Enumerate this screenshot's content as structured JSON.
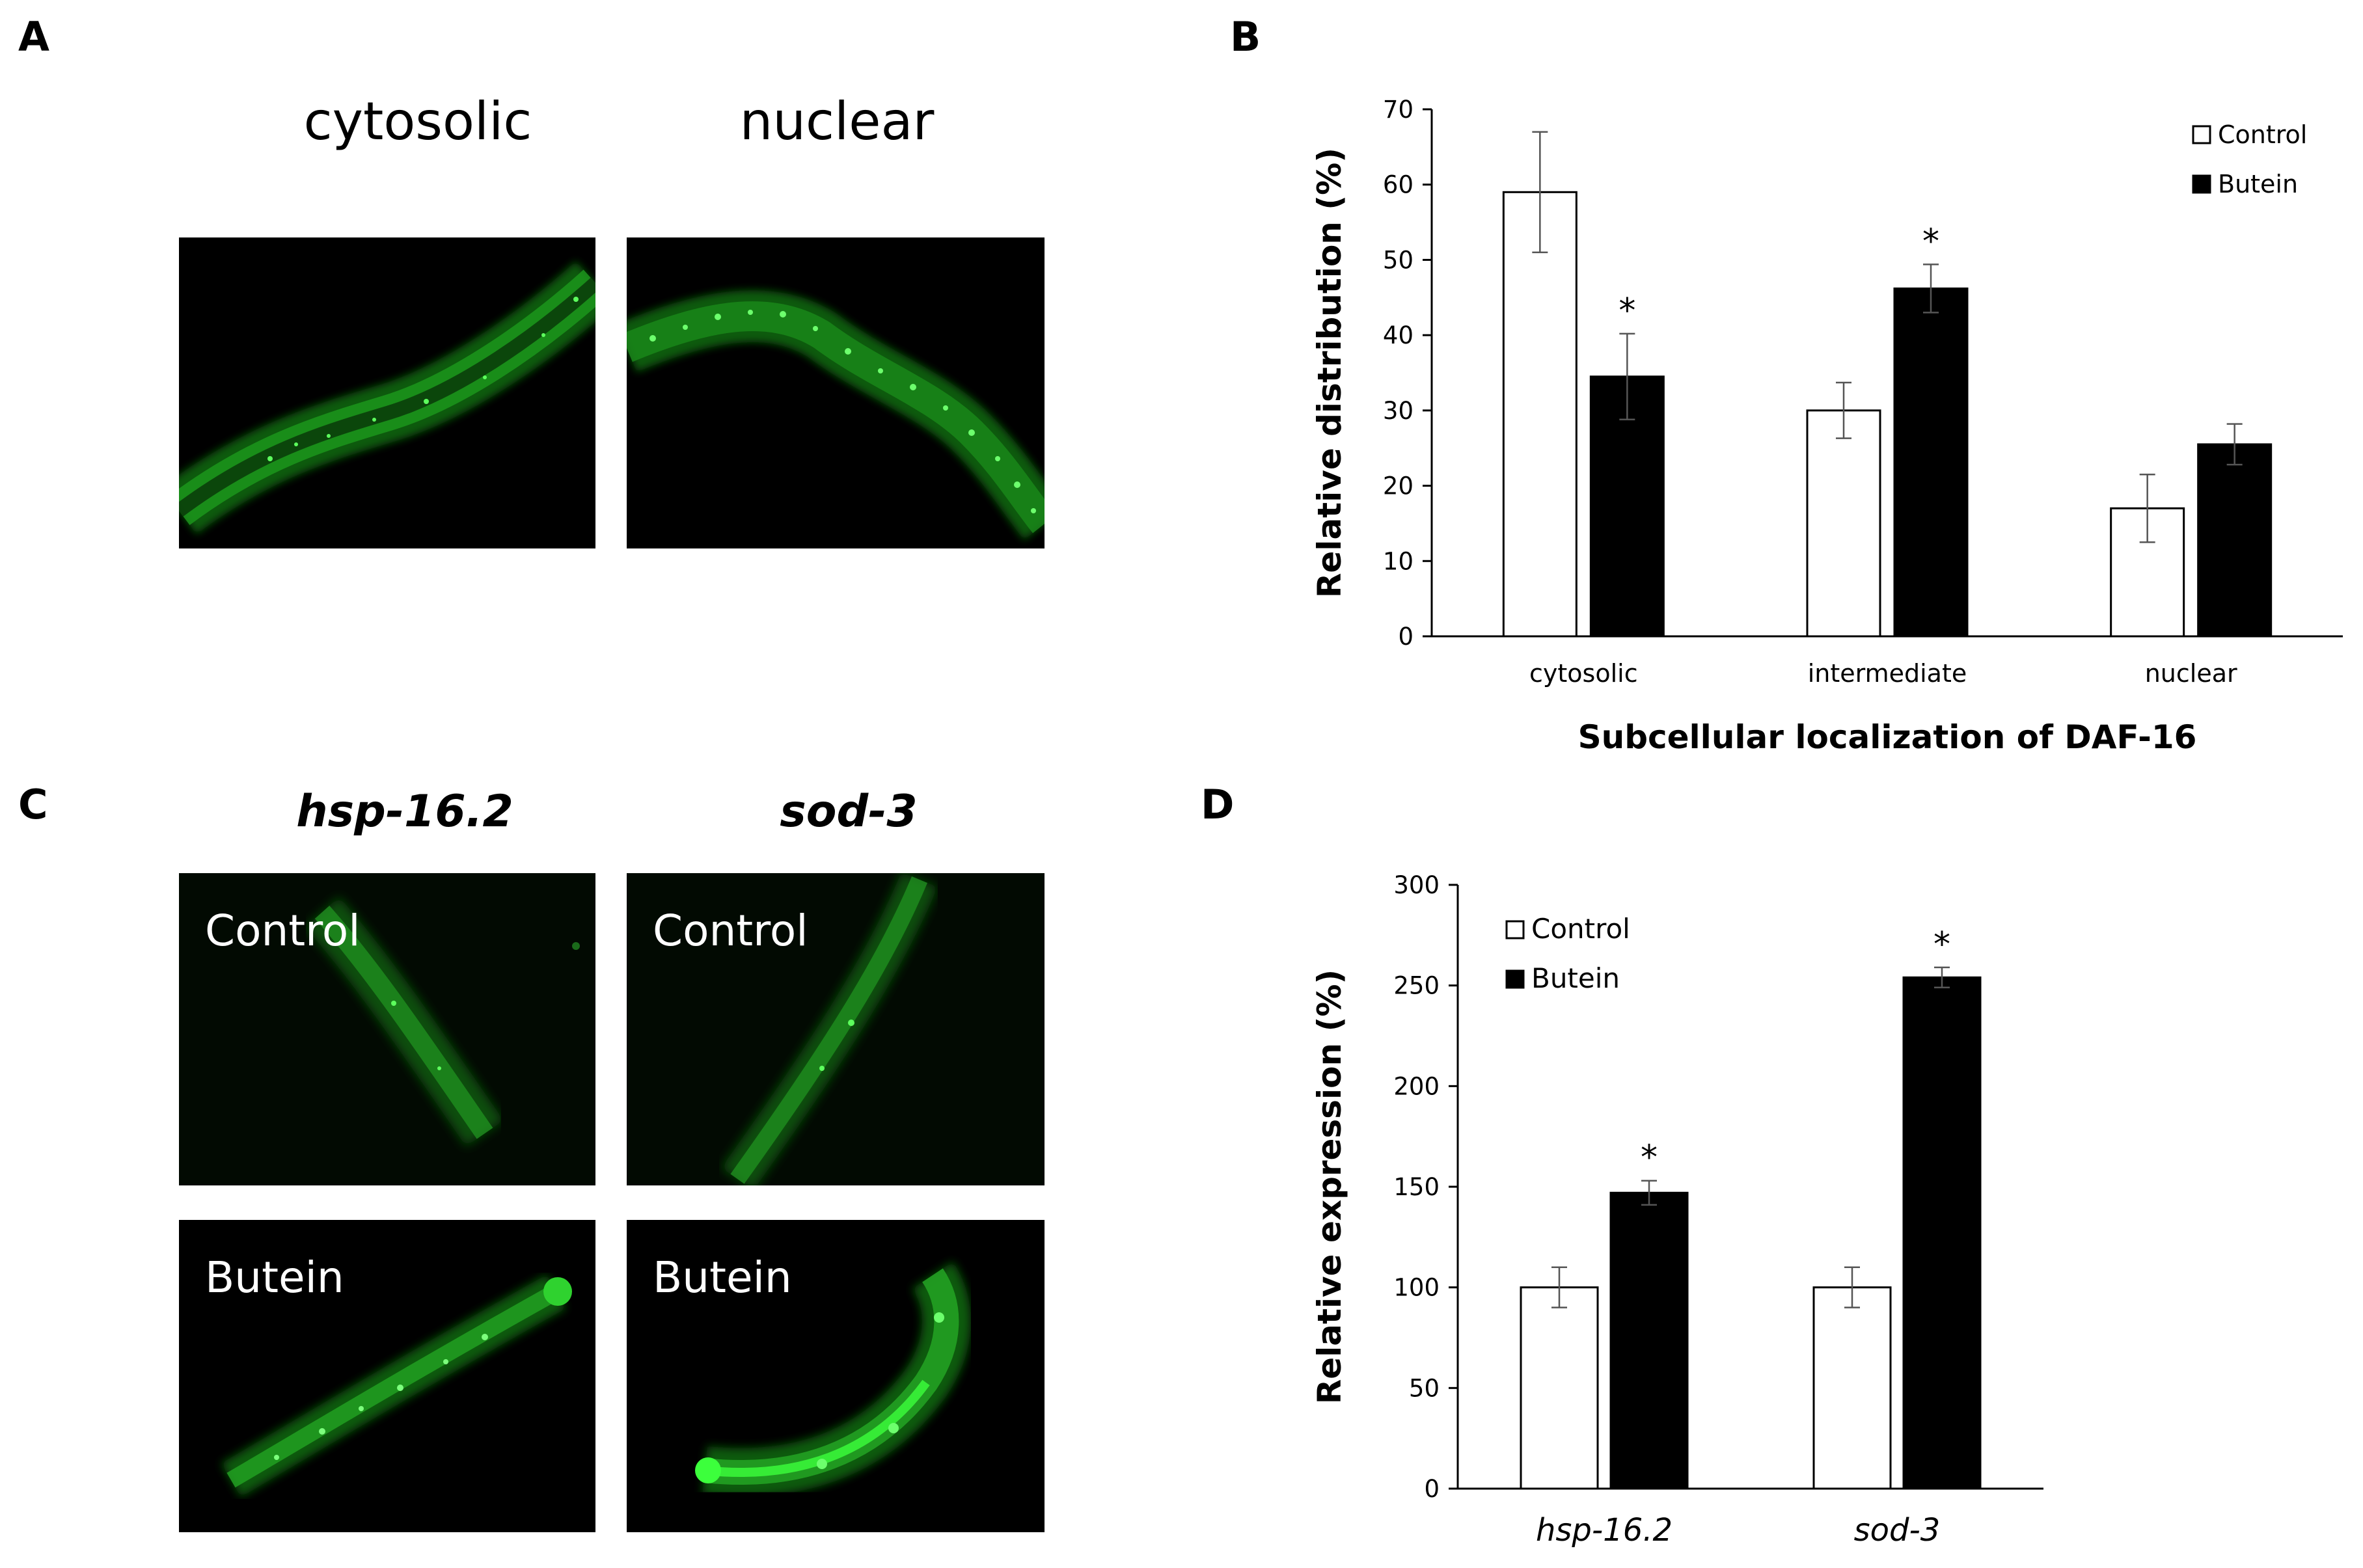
{
  "panels": {
    "a": {
      "letter": "A",
      "titles": [
        "cytosolic",
        "nuclear"
      ]
    },
    "b": {
      "letter": "B"
    },
    "c": {
      "letter": "C",
      "titles": [
        "hsp-16.2",
        "sod-3"
      ],
      "row_labels": [
        "Control",
        "Butein",
        "Control",
        "Butein"
      ]
    },
    "d": {
      "letter": "D"
    }
  },
  "chart_data": [
    {
      "type": "bar",
      "panel": "B",
      "categories": [
        "cytosolic",
        "intermediate",
        "nuclear"
      ],
      "series": [
        {
          "name": "Control",
          "values": [
            59,
            30,
            17
          ],
          "errors": [
            8,
            3.7,
            4.5
          ],
          "color": "#ffffff"
        },
        {
          "name": "Butein",
          "values": [
            34.5,
            46.2,
            25.5
          ],
          "errors": [
            5.7,
            3.2,
            2.7
          ],
          "color": "#000000"
        }
      ],
      "significance": [
        "*",
        "*",
        ""
      ],
      "ylabel": "Relative distribution  (%)",
      "xlabel": "Subcellular localization of DAF-16",
      "ylim": [
        0,
        70
      ],
      "yticks": [
        "0",
        "10",
        "20",
        "30",
        "40",
        "50",
        "60",
        "70"
      ],
      "legend": "top-right",
      "grid": false
    },
    {
      "type": "bar",
      "panel": "D",
      "categories": [
        "hsp-16.2",
        "sod-3"
      ],
      "series": [
        {
          "name": "Control",
          "values": [
            100,
            100
          ],
          "errors": [
            10,
            10
          ],
          "color": "#ffffff"
        },
        {
          "name": "Butein",
          "values": [
            147,
            254
          ],
          "errors": [
            6,
            5
          ],
          "color": "#000000"
        }
      ],
      "significance": [
        "*",
        "*"
      ],
      "ylabel": "Relative expression  (%)",
      "xlabel": "",
      "ylim": [
        0,
        300
      ],
      "yticks": [
        "0",
        "50",
        "100",
        "150",
        "200",
        "250",
        "300"
      ],
      "legend": "top-left",
      "grid": false
    }
  ]
}
